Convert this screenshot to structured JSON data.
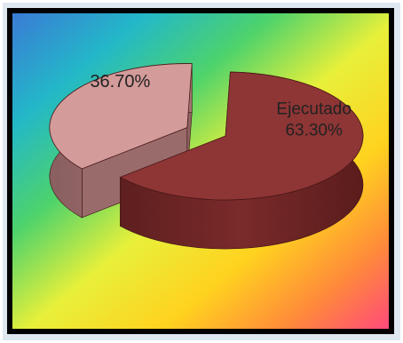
{
  "chart_data": {
    "type": "pie",
    "style": "3d-exploded",
    "slices": [
      {
        "label": "Ejecutado",
        "value": 63.3,
        "value_text": "63.30%",
        "color": "#8e3535"
      },
      {
        "label": "",
        "value": 36.7,
        "value_text": "36.70%",
        "color": "#d49b9b"
      }
    ],
    "background": "rainbow-gradient"
  }
}
